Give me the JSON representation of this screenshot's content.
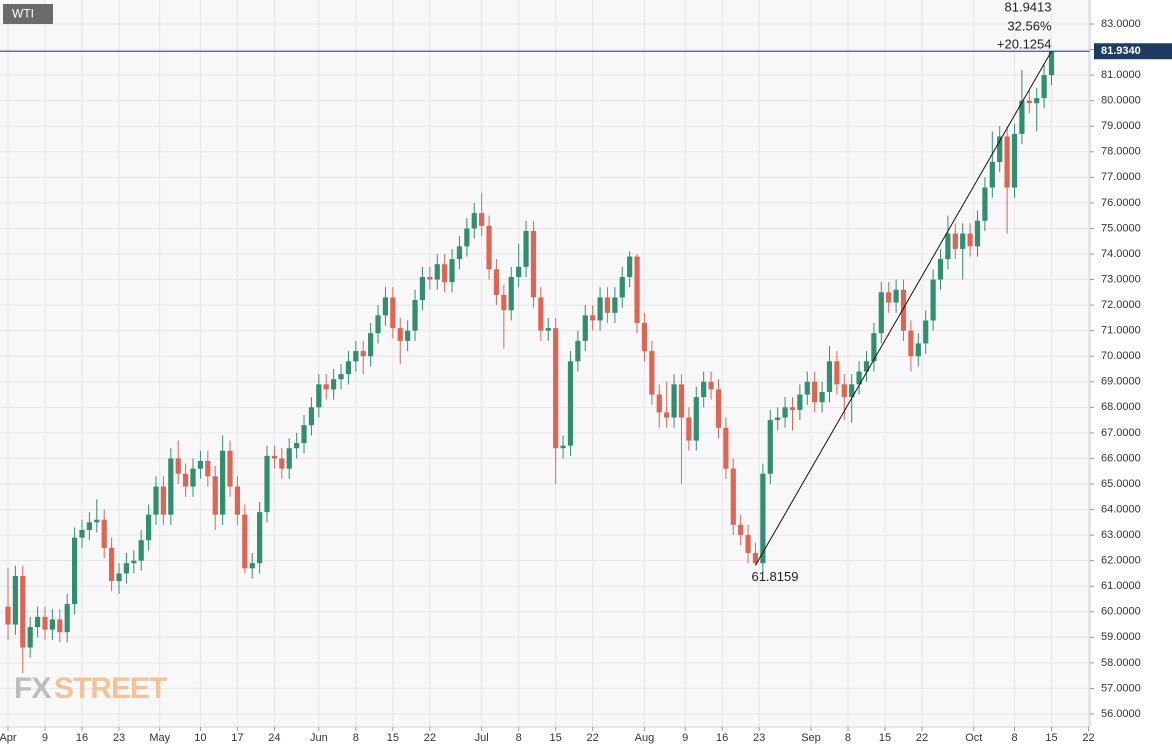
{
  "chart_data": {
    "type": "candlestick",
    "title": "WTI",
    "logo": {
      "part1": "FX",
      "part2": "STREET"
    },
    "up_color": "#2f8f6f",
    "down_color": "#e06452",
    "grid": true,
    "xlim": [
      -1.08,
      146.2
    ],
    "ylim": [
      55.49,
      83.94
    ],
    "xticks": [
      {
        "value": 0,
        "label": "Apr"
      },
      {
        "value": 5,
        "label": "9"
      },
      {
        "value": 10,
        "label": "16"
      },
      {
        "value": 15,
        "label": "23"
      },
      {
        "value": 20.5,
        "label": "May"
      },
      {
        "value": 26,
        "label": "10"
      },
      {
        "value": 31,
        "label": "17"
      },
      {
        "value": 36,
        "label": "24"
      },
      {
        "value": 42,
        "label": "Jun"
      },
      {
        "value": 47,
        "label": "8"
      },
      {
        "value": 52,
        "label": "15"
      },
      {
        "value": 57,
        "label": "22"
      },
      {
        "value": 64,
        "label": "Jul"
      },
      {
        "value": 69,
        "label": "8"
      },
      {
        "value": 74,
        "label": "15"
      },
      {
        "value": 79,
        "label": "22"
      },
      {
        "value": 86,
        "label": "Aug"
      },
      {
        "value": 91.5,
        "label": "9"
      },
      {
        "value": 96.5,
        "label": "16"
      },
      {
        "value": 101.5,
        "label": "23"
      },
      {
        "value": 108.5,
        "label": "Sep"
      },
      {
        "value": 113.5,
        "label": "8"
      },
      {
        "value": 118.5,
        "label": "15"
      },
      {
        "value": 123.5,
        "label": "22"
      },
      {
        "value": 130.5,
        "label": "Oct"
      },
      {
        "value": 136,
        "label": "8"
      },
      {
        "value": 141,
        "label": "15"
      },
      {
        "value": 146,
        "label": "22"
      }
    ],
    "yticks": [
      {
        "value": 56,
        "label": "56.0000"
      },
      {
        "value": 57,
        "label": "57.0000"
      },
      {
        "value": 58,
        "label": "58.0000"
      },
      {
        "value": 59,
        "label": "59.0000"
      },
      {
        "value": 60,
        "label": "60.0000"
      },
      {
        "value": 61,
        "label": "61.0000"
      },
      {
        "value": 62,
        "label": "62.0000"
      },
      {
        "value": 63,
        "label": "63.0000"
      },
      {
        "value": 64,
        "label": "64.0000"
      },
      {
        "value": 65,
        "label": "65.0000"
      },
      {
        "value": 66,
        "label": "66.0000"
      },
      {
        "value": 67,
        "label": "67.0000"
      },
      {
        "value": 68,
        "label": "68.0000"
      },
      {
        "value": 69,
        "label": "69.0000"
      },
      {
        "value": 70,
        "label": "70.0000"
      },
      {
        "value": 71,
        "label": "71.0000"
      },
      {
        "value": 72,
        "label": "72.0000"
      },
      {
        "value": 73,
        "label": "73.0000"
      },
      {
        "value": 74,
        "label": "74.0000"
      },
      {
        "value": 75,
        "label": "75.0000"
      },
      {
        "value": 76,
        "label": "76.0000"
      },
      {
        "value": 77,
        "label": "77.0000"
      },
      {
        "value": 78,
        "label": "78.0000"
      },
      {
        "value": 79,
        "label": "79.0000"
      },
      {
        "value": 80,
        "label": "80.0000"
      },
      {
        "value": 81,
        "label": "81.0000"
      },
      {
        "value": 82,
        "label": "82.0000"
      },
      {
        "value": 83,
        "label": "83.0000"
      }
    ],
    "last_price": {
      "value": 81.934,
      "label": "81.9340"
    },
    "measure": {
      "x0": 101,
      "y0": 61.8159,
      "x1": 141,
      "y1": 81.9413,
      "percent_label": "32.56%",
      "change_label": "+20.1254"
    },
    "x": [
      0,
      1,
      2,
      3,
      4,
      5,
      6,
      7,
      8,
      9,
      10,
      11,
      12,
      13,
      14,
      15,
      16,
      17,
      18,
      19,
      20,
      21,
      22,
      23,
      24,
      25,
      26,
      27,
      28,
      29,
      30,
      31,
      32,
      33,
      34,
      35,
      36,
      37,
      38,
      39,
      40,
      41,
      42,
      43,
      44,
      45,
      46,
      47,
      48,
      49,
      50,
      51,
      52,
      53,
      54,
      55,
      56,
      57,
      58,
      59,
      60,
      61,
      62,
      63,
      64,
      65,
      66,
      67,
      68,
      69,
      70,
      71,
      72,
      73,
      74,
      75,
      76,
      77,
      78,
      79,
      80,
      81,
      82,
      83,
      84,
      85,
      86,
      87,
      88,
      89,
      90,
      91,
      92,
      93,
      94,
      95,
      96,
      97,
      98,
      99,
      100,
      101,
      102,
      103,
      104,
      105,
      106,
      107,
      108,
      109,
      110,
      111,
      112,
      113,
      114,
      115,
      116,
      117,
      118,
      119,
      120,
      121,
      122,
      123,
      124,
      125,
      126,
      127,
      128,
      129,
      130,
      131,
      132,
      133,
      134,
      135,
      136,
      137,
      138,
      139,
      140,
      141
    ],
    "open": [
      60.2,
      59.5,
      61.4,
      58.6,
      59.4,
      59.8,
      59.3,
      59.7,
      59.2,
      60.3,
      62.9,
      63.2,
      63.5,
      63.6,
      62.5,
      61.2,
      61.5,
      61.9,
      62.0,
      62.8,
      63.8,
      64.9,
      63.8,
      66.0,
      65.4,
      64.9,
      65.6,
      65.9,
      65.3,
      63.8,
      66.3,
      64.9,
      63.8,
      61.7,
      61.9,
      63.9,
      66.1,
      66.0,
      65.6,
      66.4,
      66.6,
      67.3,
      68.0,
      68.9,
      68.7,
      69.1,
      69.3,
      69.8,
      70.2,
      70.0,
      70.9,
      71.6,
      72.3,
      71.1,
      70.6,
      71.0,
      72.2,
      73.1,
      73.0,
      73.6,
      72.9,
      73.8,
      74.3,
      75.0,
      75.6,
      75.1,
      73.4,
      72.4,
      71.8,
      73.1,
      73.5,
      74.9,
      72.3,
      71.0,
      71.1,
      66.4,
      66.5,
      69.8,
      70.6,
      71.6,
      71.4,
      72.3,
      71.7,
      72.3,
      73.1,
      73.9,
      71.3,
      70.2,
      68.5,
      67.8,
      67.6,
      68.9,
      67.6,
      66.7,
      68.4,
      69.0,
      68.7,
      67.2,
      65.6,
      63.4,
      63.0,
      62.3,
      61.9,
      65.4,
      67.5,
      67.6,
      68.0,
      67.9,
      68.5,
      69.0,
      68.2,
      68.6,
      69.8,
      68.9,
      68.4,
      68.9,
      69.4,
      69.8,
      70.9,
      72.5,
      72.1,
      72.6,
      71.0,
      70.0,
      70.5,
      71.4,
      73.0,
      73.8,
      74.8,
      74.2,
      74.8,
      74.3,
      75.3,
      76.6,
      77.6,
      78.6,
      76.6,
      78.7,
      80.0,
      79.9,
      80.1,
      81.0
    ],
    "high": [
      61.7,
      61.8,
      61.8,
      59.8,
      60.2,
      60.2,
      60.1,
      60.1,
      60.7,
      63.3,
      63.6,
      63.9,
      64.4,
      64.0,
      62.9,
      61.9,
      62.3,
      62.4,
      63.2,
      64.2,
      65.3,
      65.3,
      66.4,
      66.7,
      65.8,
      66.0,
      66.3,
      66.3,
      65.7,
      66.9,
      66.7,
      65.3,
      64.2,
      62.3,
      64.3,
      66.5,
      66.5,
      66.4,
      66.8,
      67.0,
      67.7,
      68.4,
      69.3,
      69.3,
      69.5,
      69.7,
      70.2,
      70.6,
      70.6,
      71.3,
      72.0,
      72.7,
      72.7,
      71.5,
      71.4,
      72.6,
      73.5,
      73.5,
      74.0,
      74.0,
      74.2,
      74.7,
      75.4,
      76.0,
      76.4,
      75.5,
      73.8,
      72.8,
      73.5,
      74.4,
      75.3,
      75.3,
      72.7,
      71.5,
      71.5,
      66.9,
      70.2,
      71.0,
      72.0,
      72.0,
      72.7,
      72.7,
      72.7,
      73.5,
      74.1,
      74.0,
      71.7,
      70.6,
      68.9,
      69.0,
      69.3,
      69.3,
      68.0,
      68.8,
      69.4,
      69.4,
      69.1,
      67.6,
      66.0,
      63.8,
      63.4,
      62.7,
      65.8,
      67.9,
      68.0,
      68.4,
      68.4,
      68.9,
      69.4,
      69.4,
      69.0,
      70.4,
      70.2,
      69.3,
      69.3,
      69.8,
      70.2,
      71.3,
      72.9,
      72.9,
      73.0,
      73.0,
      71.4,
      70.9,
      71.8,
      73.4,
      74.2,
      75.5,
      75.2,
      75.2,
      75.2,
      75.7,
      77.0,
      78.8,
      79.0,
      79.0,
      79.1,
      81.2,
      80.4,
      80.5,
      81.4,
      81.9413
    ],
    "low": [
      58.9,
      59.1,
      57.6,
      58.2,
      59.0,
      58.9,
      58.9,
      58.8,
      58.8,
      59.9,
      62.5,
      62.8,
      63.1,
      62.1,
      60.8,
      60.7,
      61.1,
      61.5,
      61.6,
      62.4,
      63.4,
      63.4,
      63.4,
      65.0,
      64.5,
      64.5,
      65.2,
      64.9,
      63.2,
      63.4,
      64.5,
      63.4,
      61.5,
      61.3,
      61.5,
      63.5,
      65.6,
      65.2,
      65.2,
      66.0,
      66.2,
      66.9,
      67.6,
      68.3,
      68.3,
      68.7,
      68.9,
      69.4,
      69.3,
      69.6,
      70.5,
      71.2,
      70.7,
      69.7,
      70.2,
      70.6,
      71.8,
      72.6,
      72.6,
      72.5,
      72.5,
      73.4,
      73.9,
      74.6,
      74.7,
      73.0,
      72.0,
      70.3,
      71.4,
      72.7,
      73.1,
      71.9,
      70.6,
      70.6,
      65.0,
      66.0,
      66.1,
      69.4,
      70.2,
      71.0,
      71.0,
      71.3,
      71.3,
      71.9,
      72.7,
      70.9,
      69.8,
      68.1,
      67.2,
      67.2,
      67.2,
      65.0,
      66.3,
      66.3,
      68.0,
      68.3,
      66.8,
      65.2,
      63.0,
      62.6,
      61.9,
      61.8159,
      61.5,
      65.0,
      67.1,
      67.2,
      67.1,
      67.5,
      68.1,
      67.8,
      67.8,
      68.2,
      68.5,
      67.5,
      67.4,
      68.5,
      69.0,
      69.4,
      70.5,
      71.7,
      71.7,
      70.6,
      69.4,
      69.6,
      70.1,
      71.0,
      72.6,
      73.4,
      73.8,
      73.0,
      73.9,
      73.9,
      74.9,
      76.2,
      77.2,
      74.8,
      76.2,
      78.3,
      79.5,
      78.8,
      79.7,
      80.6
    ],
    "close": [
      59.5,
      61.4,
      58.6,
      59.4,
      59.8,
      59.3,
      59.7,
      59.2,
      60.3,
      62.9,
      63.2,
      63.5,
      63.6,
      62.5,
      61.2,
      61.5,
      61.9,
      62.0,
      62.8,
      63.8,
      64.9,
      63.8,
      66.0,
      65.4,
      64.9,
      65.6,
      65.9,
      65.3,
      63.8,
      66.3,
      64.9,
      63.8,
      61.7,
      61.9,
      63.9,
      66.1,
      66.0,
      65.6,
      66.4,
      66.6,
      67.3,
      68.0,
      68.9,
      68.7,
      69.1,
      69.3,
      69.8,
      70.2,
      70.0,
      70.9,
      71.6,
      72.3,
      71.1,
      70.6,
      71.0,
      72.2,
      73.1,
      73.0,
      73.6,
      72.9,
      73.8,
      74.3,
      75.0,
      75.6,
      75.1,
      73.4,
      72.4,
      71.8,
      73.1,
      73.5,
      74.9,
      72.3,
      71.0,
      71.1,
      66.4,
      66.5,
      69.8,
      70.6,
      71.6,
      71.4,
      72.3,
      71.7,
      72.3,
      73.1,
      73.9,
      71.3,
      70.2,
      68.5,
      67.8,
      67.6,
      68.9,
      67.6,
      66.7,
      68.4,
      69.0,
      68.7,
      67.2,
      65.6,
      63.4,
      63.0,
      62.3,
      61.9,
      65.4,
      67.5,
      67.6,
      68.0,
      67.9,
      68.5,
      69.0,
      68.2,
      68.6,
      69.8,
      68.9,
      68.4,
      68.9,
      69.4,
      69.8,
      70.9,
      72.5,
      72.1,
      72.6,
      71.0,
      70.0,
      70.5,
      71.4,
      73.0,
      73.8,
      74.8,
      74.2,
      74.8,
      74.3,
      75.3,
      76.6,
      77.6,
      78.6,
      76.6,
      78.7,
      80.0,
      79.9,
      80.1,
      81.0,
      81.934
    ]
  }
}
